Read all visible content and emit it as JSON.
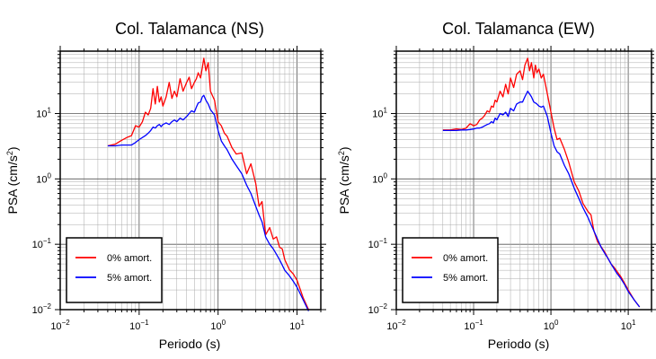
{
  "chart_data": [
    {
      "type": "line",
      "title": "Col. Talamanca (NS)",
      "xlabel": "Periodo (s)",
      "ylabel_main": "PSA (cm/s",
      "ylabel_sup": "2",
      "ylabel_close": ")",
      "xscale": "log",
      "yscale": "log",
      "xlim": [
        0.01,
        20
      ],
      "ylim": [
        0.01,
        90
      ],
      "grid": true,
      "legend_position": "bottom-left",
      "x_tick_labels": [
        {
          "base": "10",
          "exp": "−2"
        },
        {
          "base": "10",
          "exp": "−1"
        },
        {
          "base": "10",
          "exp": "0"
        },
        {
          "base": "10",
          "exp": "1"
        }
      ],
      "y_tick_labels": [
        {
          "base": "10",
          "exp": "−2"
        },
        {
          "base": "10",
          "exp": "−1"
        },
        {
          "base": "10",
          "exp": "0"
        },
        {
          "base": "10",
          "exp": "1"
        }
      ],
      "series": [
        {
          "name": "0% amort.",
          "color": "#ff0000",
          "x": [
            0.04,
            0.05,
            0.06,
            0.07,
            0.08,
            0.09,
            0.1,
            0.11,
            0.12,
            0.13,
            0.14,
            0.15,
            0.16,
            0.17,
            0.18,
            0.19,
            0.2,
            0.22,
            0.24,
            0.26,
            0.28,
            0.3,
            0.33,
            0.36,
            0.4,
            0.43,
            0.46,
            0.5,
            0.53,
            0.56,
            0.6,
            0.63,
            0.66,
            0.7,
            0.75,
            0.8,
            0.9,
            1.0,
            1.1,
            1.2,
            1.3,
            1.5,
            1.7,
            2.0,
            2.3,
            2.6,
            3.0,
            3.3,
            3.6,
            4.0,
            4.5,
            5.0,
            5.5,
            6.0,
            6.5,
            7.0,
            8.0,
            9.0,
            10.0,
            12.0,
            14.0
          ],
          "y": [
            3.2,
            3.4,
            3.9,
            4.3,
            4.6,
            6.5,
            6.2,
            7.5,
            10.5,
            9.5,
            12.0,
            24.0,
            14.0,
            26.0,
            15.0,
            18.0,
            13.0,
            18.0,
            30.0,
            17.0,
            22.0,
            18.0,
            34.0,
            22.0,
            30.0,
            36.0,
            24.0,
            30.0,
            34.0,
            42.0,
            35.0,
            50.0,
            70.0,
            45.0,
            60.0,
            22.0,
            16.0,
            7.5,
            6.5,
            5.0,
            4.5,
            3.0,
            2.4,
            2.5,
            1.2,
            1.7,
            0.85,
            0.38,
            0.45,
            0.14,
            0.18,
            0.12,
            0.13,
            0.09,
            0.085,
            0.058,
            0.041,
            0.035,
            0.028,
            0.015,
            0.01
          ]
        },
        {
          "name": "5% amort.",
          "color": "#0000ff",
          "x": [
            0.04,
            0.05,
            0.06,
            0.07,
            0.08,
            0.09,
            0.1,
            0.11,
            0.12,
            0.13,
            0.14,
            0.15,
            0.16,
            0.17,
            0.18,
            0.19,
            0.2,
            0.22,
            0.24,
            0.26,
            0.28,
            0.3,
            0.33,
            0.36,
            0.4,
            0.43,
            0.46,
            0.5,
            0.53,
            0.56,
            0.6,
            0.63,
            0.66,
            0.7,
            0.75,
            0.8,
            0.9,
            1.0,
            1.1,
            1.2,
            1.3,
            1.5,
            1.7,
            2.0,
            2.3,
            2.6,
            3.0,
            3.3,
            3.6,
            4.0,
            4.5,
            5.0,
            5.5,
            6.0,
            6.5,
            7.0,
            8.0,
            9.0,
            10.0,
            12.0,
            14.0
          ],
          "y": [
            3.2,
            3.2,
            3.3,
            3.3,
            3.3,
            3.6,
            4.0,
            4.3,
            4.6,
            5.0,
            5.5,
            6.2,
            6.0,
            6.5,
            6.8,
            6.3,
            6.8,
            7.2,
            6.8,
            7.5,
            8.0,
            7.5,
            8.5,
            8.0,
            9.0,
            10.0,
            11.0,
            10.5,
            12.5,
            14.5,
            15.0,
            18.0,
            19.0,
            16.0,
            14.0,
            11.5,
            9.5,
            5.5,
            3.8,
            3.2,
            2.8,
            2.0,
            1.6,
            1.2,
            0.8,
            0.6,
            0.38,
            0.28,
            0.22,
            0.13,
            0.1,
            0.085,
            0.07,
            0.058,
            0.048,
            0.04,
            0.033,
            0.027,
            0.022,
            0.014,
            0.0095
          ]
        }
      ]
    },
    {
      "type": "line",
      "title": "Col. Talamanca (EW)",
      "xlabel": "Periodo (s)",
      "ylabel_main": "PSA (cm/s",
      "ylabel_sup": "2",
      "ylabel_close": ")",
      "xscale": "log",
      "yscale": "log",
      "xlim": [
        0.01,
        20
      ],
      "ylim": [
        0.01,
        90
      ],
      "grid": true,
      "legend_position": "bottom-left",
      "x_tick_labels": [
        {
          "base": "10",
          "exp": "−2"
        },
        {
          "base": "10",
          "exp": "−1"
        },
        {
          "base": "10",
          "exp": "0"
        },
        {
          "base": "10",
          "exp": "1"
        }
      ],
      "y_tick_labels": [
        {
          "base": "10",
          "exp": "−2"
        },
        {
          "base": "10",
          "exp": "−1"
        },
        {
          "base": "10",
          "exp": "0"
        },
        {
          "base": "10",
          "exp": "1"
        }
      ],
      "series": [
        {
          "name": "0% amort.",
          "color": "#ff0000",
          "x": [
            0.04,
            0.05,
            0.06,
            0.07,
            0.08,
            0.09,
            0.1,
            0.11,
            0.12,
            0.13,
            0.14,
            0.15,
            0.16,
            0.17,
            0.18,
            0.19,
            0.2,
            0.22,
            0.24,
            0.26,
            0.28,
            0.3,
            0.33,
            0.36,
            0.4,
            0.43,
            0.46,
            0.5,
            0.53,
            0.56,
            0.6,
            0.63,
            0.66,
            0.7,
            0.75,
            0.8,
            0.9,
            1.0,
            1.1,
            1.2,
            1.3,
            1.5,
            1.7,
            2.0,
            2.3,
            2.6,
            3.0,
            3.3,
            3.6,
            4.0,
            4.5,
            5.0,
            5.5,
            6.0,
            6.5,
            7.0,
            8.0,
            9.0,
            10.0,
            12.0,
            14.0
          ],
          "y": [
            5.6,
            5.6,
            5.8,
            5.7,
            6.0,
            7.0,
            6.5,
            6.8,
            8.0,
            8.5,
            9.5,
            11.0,
            10.5,
            13.0,
            12.5,
            16.0,
            15.0,
            22.0,
            18.0,
            28.0,
            20.0,
            35.0,
            25.0,
            40.0,
            45.0,
            33.0,
            55.0,
            70.0,
            45.0,
            60.0,
            35.0,
            55.0,
            42.0,
            48.0,
            35.0,
            40.0,
            20.0,
            10.5,
            6.0,
            4.0,
            4.2,
            2.8,
            1.8,
            0.9,
            0.65,
            0.42,
            0.32,
            0.28,
            0.16,
            0.11,
            0.09,
            0.075,
            0.06,
            0.05,
            0.045,
            0.04,
            0.032,
            0.025,
            0.02,
            0.014,
            0.011
          ]
        },
        {
          "name": "5% amort.",
          "color": "#0000ff",
          "x": [
            0.04,
            0.05,
            0.06,
            0.07,
            0.08,
            0.09,
            0.1,
            0.11,
            0.12,
            0.13,
            0.14,
            0.15,
            0.16,
            0.17,
            0.18,
            0.19,
            0.2,
            0.22,
            0.24,
            0.26,
            0.28,
            0.3,
            0.33,
            0.36,
            0.4,
            0.43,
            0.46,
            0.5,
            0.53,
            0.56,
            0.6,
            0.63,
            0.66,
            0.7,
            0.75,
            0.8,
            0.9,
            1.0,
            1.1,
            1.2,
            1.3,
            1.5,
            1.7,
            2.0,
            2.3,
            2.6,
            3.0,
            3.3,
            3.6,
            4.0,
            4.5,
            5.0,
            5.5,
            6.0,
            6.5,
            7.0,
            8.0,
            9.0,
            10.0,
            12.0,
            14.0
          ],
          "y": [
            5.5,
            5.5,
            5.5,
            5.6,
            5.6,
            5.7,
            5.8,
            6.0,
            6.0,
            6.2,
            6.5,
            6.8,
            7.0,
            7.5,
            7.2,
            8.5,
            8.0,
            10.0,
            9.5,
            10.5,
            9.0,
            12.0,
            11.0,
            14.0,
            15.0,
            15.0,
            18.0,
            22.0,
            20.0,
            18.0,
            15.0,
            14.5,
            14.0,
            13.0,
            12.5,
            13.0,
            9.0,
            5.0,
            3.2,
            2.6,
            2.4,
            1.6,
            1.2,
            0.72,
            0.5,
            0.36,
            0.26,
            0.2,
            0.16,
            0.12,
            0.088,
            0.072,
            0.06,
            0.05,
            0.043,
            0.037,
            0.03,
            0.024,
            0.019,
            0.014,
            0.011
          ]
        }
      ]
    }
  ]
}
